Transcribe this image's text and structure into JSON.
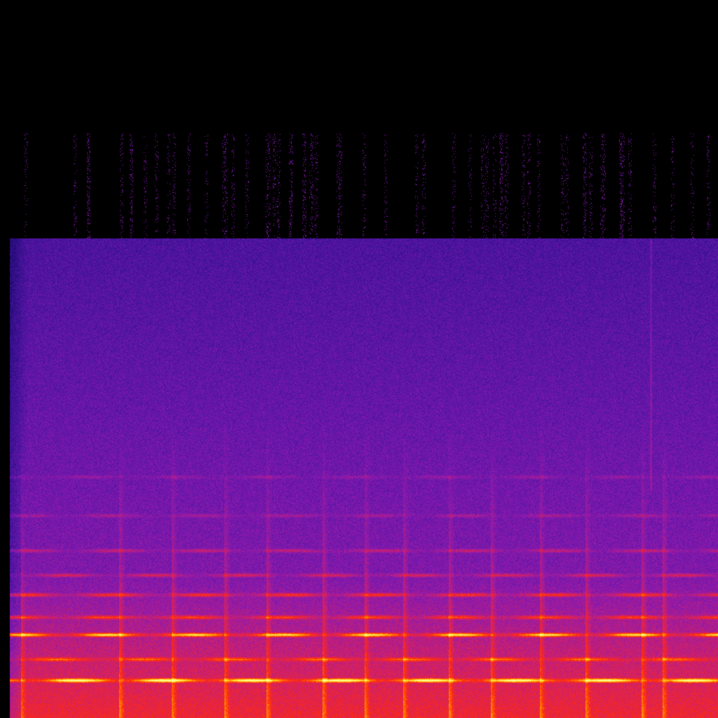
{
  "image": {
    "kind": "spectrogram",
    "colormap": [
      "#000000",
      "#1a0a6e",
      "#4b14a0",
      "#8a1ab0",
      "#d0206a",
      "#ff2a10",
      "#ff8a00",
      "#ffe030",
      "#ffffa0"
    ],
    "background": "#000000"
  }
}
